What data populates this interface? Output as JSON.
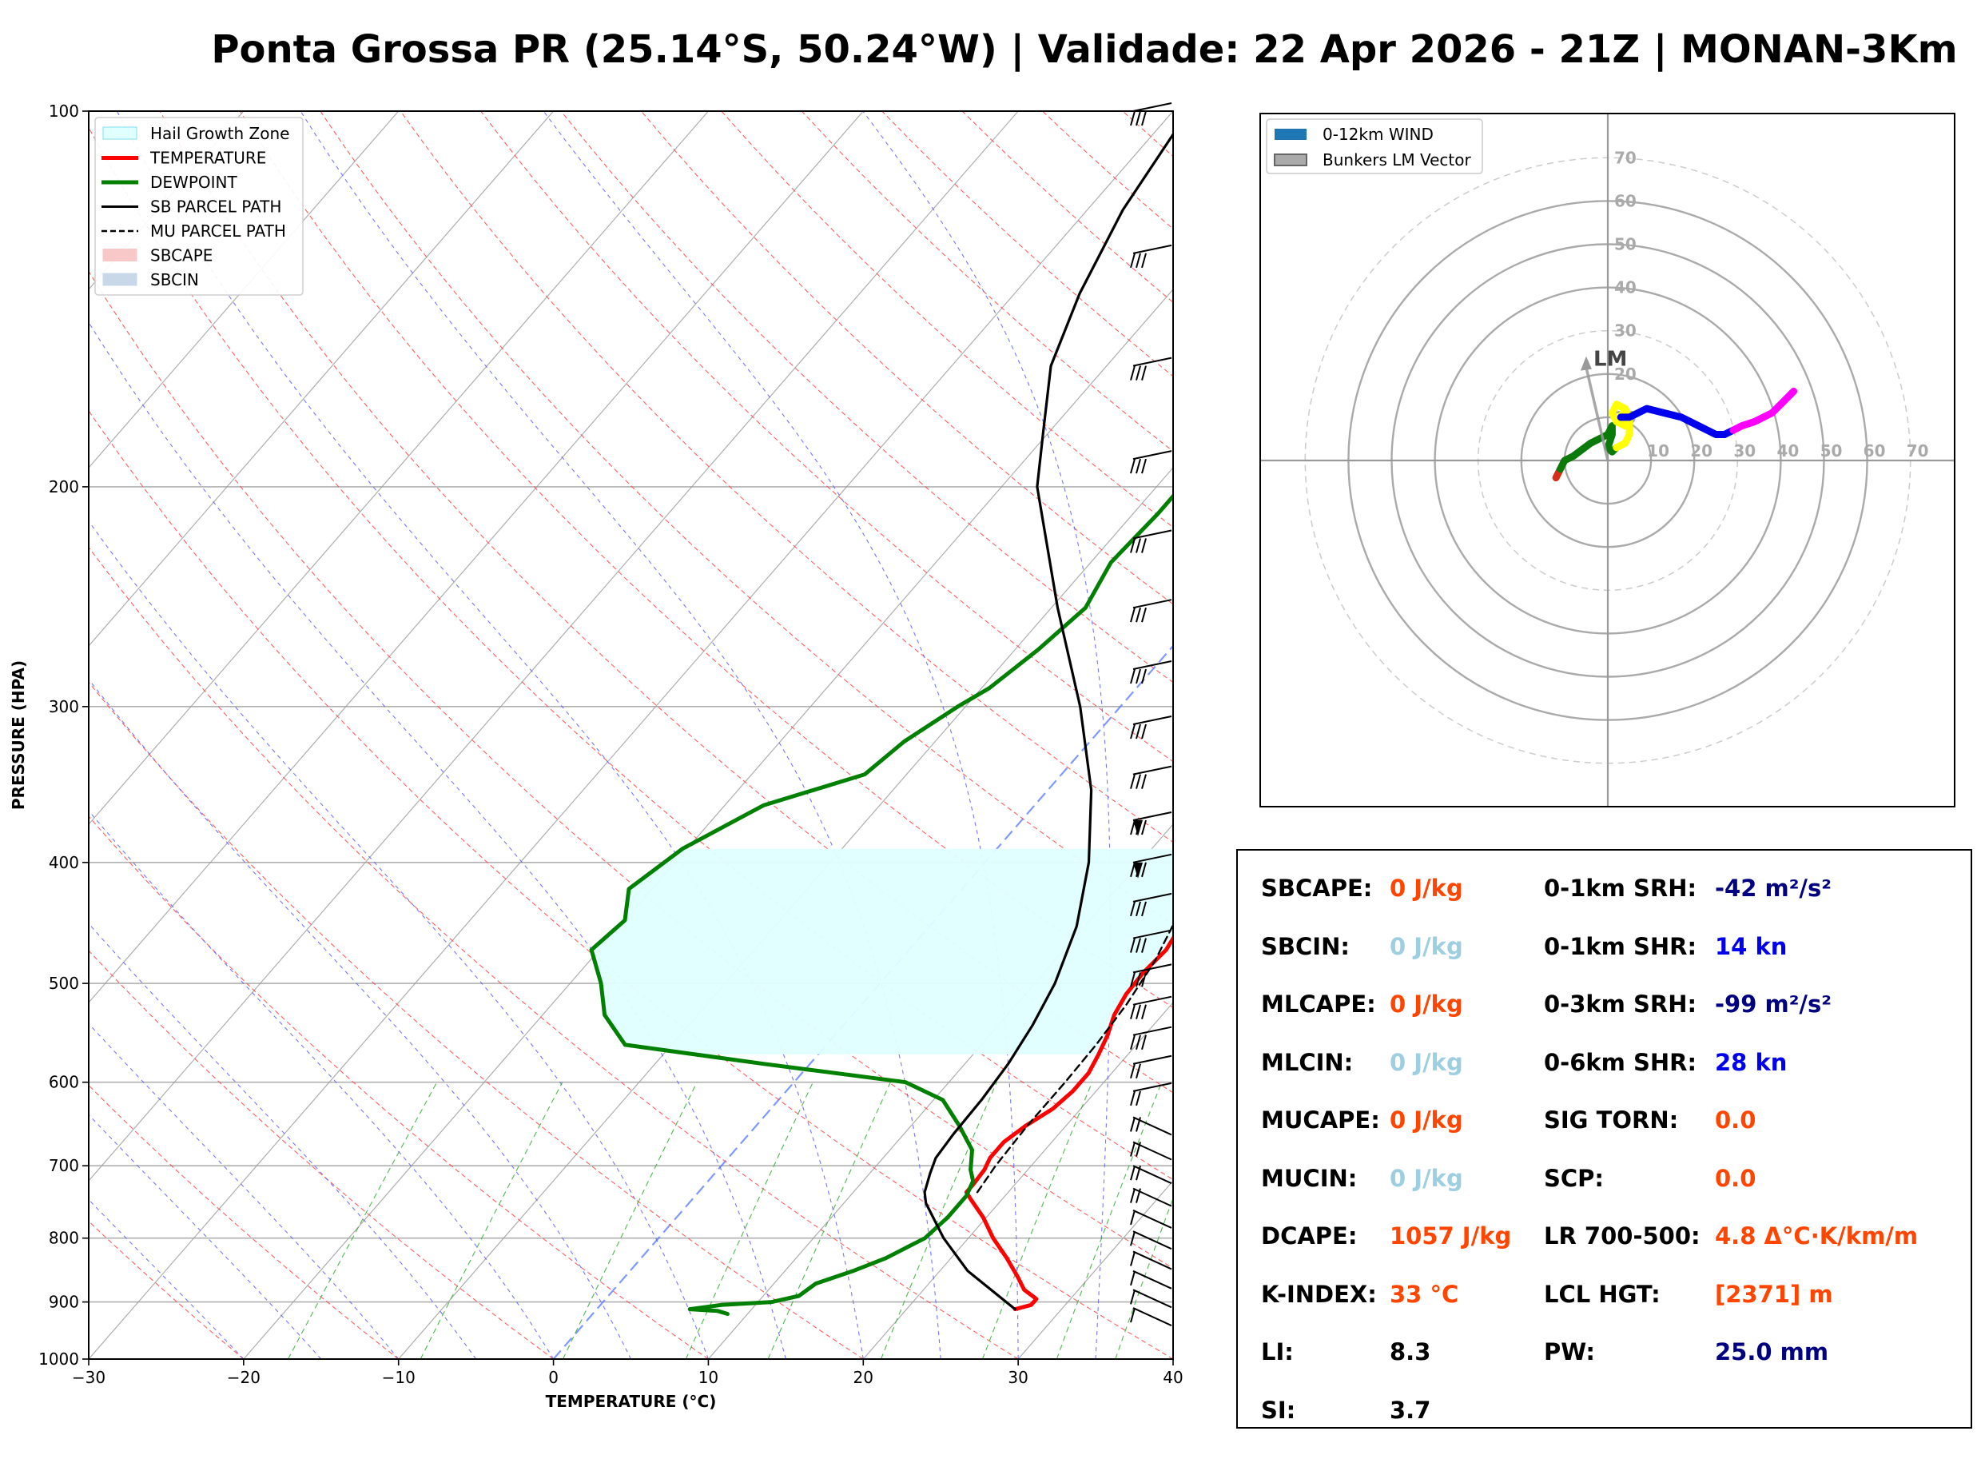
{
  "title": "Ponta Grossa PR (25.14°S, 50.24°W) | Validade: 22 Apr 2026 - 21Z | MONAN-3Km",
  "colors": {
    "temperature": "#ff0000",
    "dewpoint": "#008000",
    "parcel": "#000000",
    "hgz": "#e0ffff",
    "dry_adiabat": "#ff4444",
    "moist_adiabat": "#5555ff",
    "mixing_ratio": "#33aa33",
    "isotherm": "#999999",
    "freezing": "#5577ff",
    "orange_value": "#ff4500",
    "lightblue_value": "#9ecfe0",
    "navy_value": "#000080",
    "blue_value": "#0000ee"
  },
  "chart_data": [
    {
      "type": "line",
      "title": "",
      "xlabel": "TEMPERATURE (°C)",
      "ylabel": "PRESSURE (HPA)",
      "xlim": [
        -30,
        40
      ],
      "ylim": [
        1000,
        100
      ],
      "y_scale": "log",
      "x_ticks": [
        "−30",
        "−20",
        "−10",
        "0",
        "10",
        "20",
        "30",
        "40"
      ],
      "y_ticks": [
        "100",
        "200",
        "300",
        "400",
        "500",
        "600",
        "700",
        "800",
        "900",
        "1000"
      ],
      "grid": true,
      "legend_position": "top-left",
      "legend": [
        "Hail Growth Zone",
        "TEMPERATURE",
        "DEWPOINT",
        "SB PARCEL PATH",
        "MU PARCEL PATH",
        "SBCAPE",
        "SBCIN"
      ],
      "series": [
        {
          "name": "TEMPERATURE",
          "points": [
            [
              912,
              27.0
            ],
            [
              905,
              27.8
            ],
            [
              895,
              27.8
            ],
            [
              880,
              26.5
            ],
            [
              860,
              25.4
            ],
            [
              830,
              23.6
            ],
            [
              800,
              21.6
            ],
            [
              770,
              19.8
            ],
            [
              745,
              18.0
            ],
            [
              735,
              17.3
            ],
            [
              725,
              17.3
            ],
            [
              705,
              17.2
            ],
            [
              690,
              16.9
            ],
            [
              670,
              16.9
            ],
            [
              650,
              17.4
            ],
            [
              630,
              18.2
            ],
            [
              610,
              18.5
            ],
            [
              590,
              18.5
            ],
            [
              570,
              18.1
            ],
            [
              550,
              17.6
            ],
            [
              530,
              16.9
            ],
            [
              510,
              16.5
            ],
            [
              490,
              16.4
            ],
            [
              470,
              16.6
            ],
            [
              450,
              16.2
            ],
            [
              430,
              15.9
            ],
            [
              410,
              15.9
            ],
            [
              400,
              15.9
            ],
            [
              390,
              15.6
            ],
            [
              370,
              14.9
            ],
            [
              350,
              14.3
            ],
            [
              330,
              13.2
            ],
            [
              315,
              12.3
            ],
            [
              300,
              11.3
            ],
            [
              280,
              9.8
            ],
            [
              260,
              8.1
            ],
            [
              240,
              5.6
            ],
            [
              220,
              3.6
            ],
            [
              200,
              2.0
            ],
            [
              190,
              1.4
            ],
            [
              180,
              1.0
            ],
            [
              170,
              0.6
            ],
            [
              160,
              0.9
            ],
            [
              150,
              1.2
            ],
            [
              140,
              0.6
            ],
            [
              130,
              0.6
            ],
            [
              120,
              0.5
            ],
            [
              110,
              1.2
            ],
            [
              100,
              1.9
            ]
          ]
        },
        {
          "name": "DEWPOINT",
          "points": [
            [
              920,
              8.7
            ],
            [
              915,
              7.9
            ],
            [
              912,
              6.0
            ],
            [
              905,
              7.8
            ],
            [
              900,
              10.9
            ],
            [
              890,
              12.3
            ],
            [
              870,
              12.7
            ],
            [
              850,
              14.4
            ],
            [
              830,
              15.8
            ],
            [
              800,
              17.2
            ],
            [
              770,
              17.5
            ],
            [
              740,
              17.5
            ],
            [
              720,
              17.1
            ],
            [
              705,
              16.3
            ],
            [
              680,
              15.3
            ],
            [
              650,
              13.1
            ],
            [
              620,
              10.6
            ],
            [
              600,
              7.2
            ],
            [
              580,
              -3.0
            ],
            [
              560,
              -13.0
            ],
            [
              530,
              -16.0
            ],
            [
              500,
              -18.0
            ],
            [
              470,
              -20.5
            ],
            [
              445,
              -20.0
            ],
            [
              420,
              -21.5
            ],
            [
              390,
              -20.3
            ],
            [
              360,
              -17.5
            ],
            [
              340,
              -12.7
            ],
            [
              320,
              -12.0
            ],
            [
              300,
              -10.5
            ],
            [
              290,
              -9.5
            ],
            [
              270,
              -8.5
            ],
            [
              250,
              -7.8
            ],
            [
              230,
              -8.7
            ],
            [
              210,
              -8.4
            ],
            [
              195,
              -8.4
            ],
            [
              180,
              -9.4
            ],
            [
              170,
              -10.2
            ],
            [
              160,
              -11.9
            ],
            [
              150,
              -12.3
            ],
            [
              140,
              -13.9
            ],
            [
              130,
              -14.5
            ],
            [
              120,
              -14.0
            ],
            [
              110,
              -12.0
            ],
            [
              100,
              -10.9
            ]
          ]
        },
        {
          "name": "SB PARCEL PATH",
          "points": [
            [
              912,
              27.0
            ],
            [
              850,
              21.8
            ],
            [
              800,
              18.4
            ],
            [
              750,
              15.3
            ],
            [
              735,
              14.6
            ],
            [
              710,
              13.9
            ],
            [
              690,
              13.4
            ],
            [
              660,
              13.2
            ],
            [
              620,
              13.1
            ],
            [
              580,
              12.8
            ],
            [
              540,
              12.2
            ],
            [
              500,
              11.3
            ],
            [
              450,
              9.5
            ],
            [
              400,
              6.7
            ],
            [
              350,
              2.8
            ],
            [
              300,
              -2.6
            ],
            [
              250,
              -9.6
            ],
            [
              200,
              -17.7
            ],
            [
              180,
              -20.5
            ],
            [
              160,
              -23.6
            ],
            [
              140,
              -25.8
            ],
            [
              120,
              -27.7
            ],
            [
              100,
              -29.0
            ]
          ]
        },
        {
          "name": "MU PARCEL PATH",
          "points": [
            [
              735,
              18.0
            ],
            [
              700,
              17.7
            ],
            [
              650,
              17.5
            ],
            [
              600,
              17.5
            ],
            [
              560,
              17.4
            ],
            [
              520,
              17.1
            ],
            [
              480,
              16.5
            ],
            [
              440,
              15.4
            ],
            [
              400,
              13.7
            ],
            [
              350,
              10.7
            ],
            [
              300,
              6.6
            ],
            [
              260,
              1.9
            ],
            [
              240,
              -0.1
            ],
            [
              220,
              -2.7
            ],
            [
              200,
              -5.3
            ],
            [
              180,
              -8.9
            ],
            [
              160,
              -12.5
            ],
            [
              140,
              -15.2
            ],
            [
              120,
              -17.9
            ],
            [
              100,
              -20.2
            ]
          ]
        }
      ],
      "hail_growth_zone": {
        "label": "Hail Growth Zone",
        "top_hpa": 390,
        "bottom_hpa": 570
      },
      "wind_barbs_hpa": [
        100,
        130,
        160,
        190,
        220,
        250,
        280,
        310,
        340,
        370,
        400,
        430,
        460,
        490,
        520,
        550,
        580,
        610,
        640,
        670,
        700,
        730,
        760,
        790,
        820,
        850,
        880,
        910
      ]
    },
    {
      "type": "scatter",
      "title": "",
      "legend_position": "top-left",
      "legend": [
        "0-12km WIND",
        "Bunkers LM Vector"
      ],
      "rings": [
        10,
        20,
        30,
        40,
        50,
        60,
        70
      ],
      "ring_labels": [
        "10",
        "20",
        "30",
        "40",
        "50",
        "60",
        "70"
      ],
      "marker_label": "LM",
      "bunkers_lm_vector": [
        -5,
        23
      ],
      "segments": [
        {
          "color": "#d82c16",
          "points": [
            [
              -12,
              -4
            ],
            [
              -11,
              -2
            ]
          ]
        },
        {
          "color": "#0a7a0a",
          "points": [
            [
              -11,
              -2
            ],
            [
              -10,
              0
            ],
            [
              -8,
              1
            ],
            [
              -6,
              2.5
            ],
            [
              -4,
              4
            ],
            [
              -2,
              5
            ],
            [
              0,
              6
            ],
            [
              1,
              8
            ],
            [
              1,
              6
            ],
            [
              0,
              3
            ],
            [
              1,
              2
            ],
            [
              2,
              3
            ]
          ]
        },
        {
          "color": "#ffff00",
          "points": [
            [
              2,
              3
            ],
            [
              4,
              4
            ],
            [
              5,
              6
            ],
            [
              5,
              9
            ],
            [
              4,
              12
            ],
            [
              2,
              13
            ],
            [
              1,
              11
            ],
            [
              2,
              9
            ],
            [
              4,
              8
            ],
            [
              5,
              10
            ],
            [
              4,
              12
            ],
            [
              3,
              10
            ]
          ]
        },
        {
          "color": "#0000ee",
          "points": [
            [
              3,
              10
            ],
            [
              5,
              10
            ],
            [
              9,
              12
            ],
            [
              13,
              11
            ],
            [
              17,
              10
            ],
            [
              21,
              8
            ],
            [
              25,
              6
            ],
            [
              27,
              6
            ],
            [
              29,
              7
            ]
          ]
        },
        {
          "color": "#ff00ff",
          "points": [
            [
              29,
              7
            ],
            [
              31,
              8
            ],
            [
              34,
              9
            ],
            [
              38,
              11
            ],
            [
              41,
              14
            ],
            [
              43,
              16
            ]
          ]
        }
      ]
    }
  ],
  "params": {
    "left": [
      {
        "label": "SBCAPE:",
        "value": "0 J/kg",
        "color": "#ff4500"
      },
      {
        "label": "SBCIN:",
        "value": "0 J/kg",
        "color": "#9ecfe0"
      },
      {
        "label": "MLCAPE:",
        "value": "0 J/kg",
        "color": "#ff4500"
      },
      {
        "label": "MLCIN:",
        "value": "0 J/kg",
        "color": "#9ecfe0"
      },
      {
        "label": "MUCAPE:",
        "value": "0 J/kg",
        "color": "#ff4500"
      },
      {
        "label": "MUCIN:",
        "value": "0 J/kg",
        "color": "#9ecfe0"
      },
      {
        "label": "DCAPE:",
        "value": "1057 J/kg",
        "color": "#ff4500"
      },
      {
        "label": "K-INDEX:",
        "value": "33 °C",
        "color": "#ff4500"
      },
      {
        "label": "LI:",
        "value": "8.3",
        "color": "#000000"
      },
      {
        "label": "SI:",
        "value": "3.7",
        "color": "#000000"
      }
    ],
    "right": [
      {
        "label": "0-1km SRH:",
        "value": "-42 m²/s²",
        "color": "#000080"
      },
      {
        "label": "0-1km SHR:",
        "value": "14 kn",
        "color": "#0000ee"
      },
      {
        "label": "0-3km SRH:",
        "value": "-99 m²/s²",
        "color": "#000080"
      },
      {
        "label": "0-6km SHR:",
        "value": "28 kn",
        "color": "#0000ee"
      },
      {
        "label": "SIG TORN:",
        "value": "0.0",
        "color": "#ff4500"
      },
      {
        "label": "SCP:",
        "value": "0.0",
        "color": "#ff4500"
      },
      {
        "label": "LR 700-500:",
        "value": "4.8 Δ°C·K/km/m",
        "color": "#ff4500"
      },
      {
        "label": "LCL HGT:",
        "value": "[2371] m",
        "color": "#ff4500"
      },
      {
        "label": "PW:",
        "value": "25.0 mm",
        "color": "#000080"
      }
    ]
  }
}
